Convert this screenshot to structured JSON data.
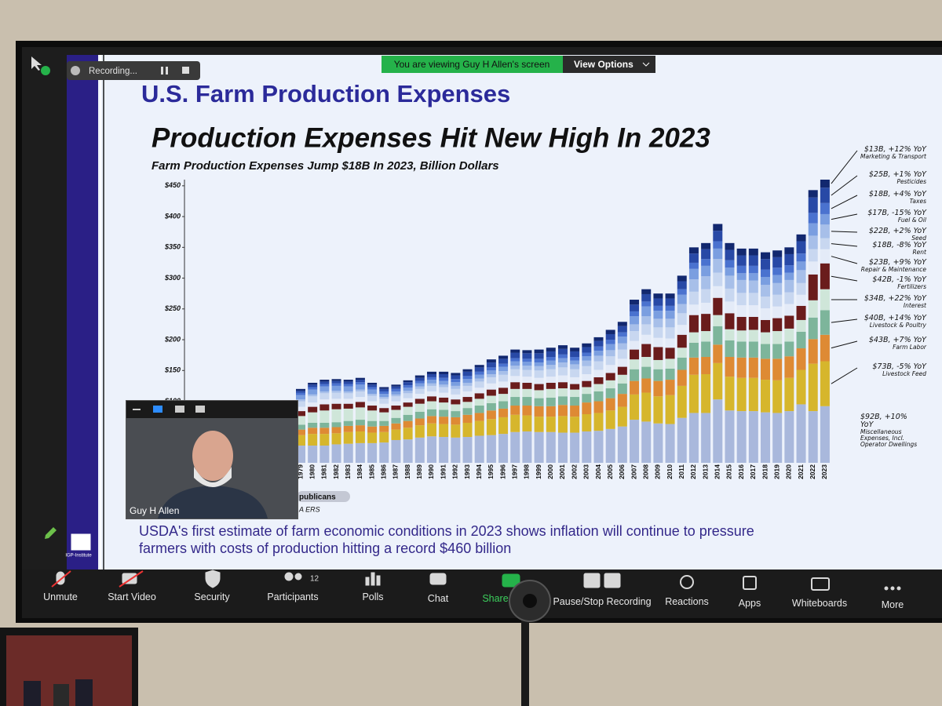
{
  "zoom": {
    "recording": "Recording...",
    "banner": "You are viewing Guy H Allen's screen",
    "view_options": "View Options",
    "participant_name": "Guy H Allen",
    "participants_count": 12,
    "toolbar": [
      "Unmute",
      "Start Video",
      "Security",
      "Participants",
      "Polls",
      "Chat",
      "Share",
      "Pause/Stop Recording",
      "Reactions",
      "Apps",
      "Whiteboards",
      "More"
    ]
  },
  "slide": {
    "header": "U.S. Farm Production Expenses",
    "logo": "IGP-Institute",
    "fragments": [
      "publicans",
      "A ERS"
    ],
    "footnote": [
      "USDA's first estimate of farm economic conditions in 2023 shows inflation will continue to pressure",
      "farmers with costs of production hitting a record $460 billion"
    ]
  },
  "chart_data": {
    "type": "stacked-bar",
    "title": "Production Expenses Hit New High In 2023",
    "subtitle": "Farm Production Expenses Jump $18B In 2023, Billion Dollars",
    "categories": [
      "1979",
      "1980",
      "1981",
      "1982",
      "1983",
      "1984",
      "1985",
      "1986",
      "1987",
      "1988",
      "1989",
      "1990",
      "1991",
      "1992",
      "1993",
      "1994",
      "1995",
      "1996",
      "1997",
      "1998",
      "1999",
      "2000",
      "2001",
      "2002",
      "2003",
      "2004",
      "2005",
      "2006",
      "2007",
      "2008",
      "2009",
      "2010",
      "2011",
      "2012",
      "2013",
      "2014",
      "2015",
      "2016",
      "2017",
      "2018",
      "2019",
      "2020",
      "2021",
      "2022",
      "2023"
    ],
    "ylim": [
      0,
      460
    ],
    "yticks": [
      {
        "value": 100,
        "label": "$100"
      },
      {
        "value": 150,
        "label": "$150"
      },
      {
        "value": 200,
        "label": "$200"
      },
      {
        "value": 250,
        "label": "$250"
      },
      {
        "value": 300,
        "label": "$300"
      },
      {
        "value": 350,
        "label": "$350"
      },
      {
        "value": 400,
        "label": "$400"
      },
      {
        "value": 450,
        "label": "$450"
      }
    ],
    "grid": false,
    "series": [
      {
        "name": "Miscellaneous Expenses, Incl. Operator Dwellings",
        "annotation": "$92B, +10% YoY",
        "color": "#a9b8dc",
        "values": [
          28,
          28,
          28,
          30,
          31,
          32,
          32,
          33,
          37,
          38,
          41,
          43,
          42,
          41,
          42,
          44,
          45,
          47,
          50,
          51,
          50,
          50,
          49,
          49,
          51,
          52,
          55,
          59,
          70,
          67,
          64,
          63,
          73,
          81,
          81,
          103,
          85,
          84,
          84,
          82,
          81,
          84,
          95,
          84,
          92
        ]
      },
      {
        "name": "Livestock Feed",
        "annotation": "$73B, -5% YoY",
        "color": "#d6b62c",
        "values": [
          17,
          19,
          19,
          18,
          19,
          19,
          17,
          17,
          17,
          19,
          20,
          21,
          21,
          21,
          23,
          24,
          26,
          27,
          28,
          26,
          25,
          25,
          27,
          26,
          28,
          29,
          30,
          32,
          41,
          47,
          44,
          47,
          52,
          62,
          63,
          59,
          55,
          54,
          54,
          53,
          53,
          54,
          56,
          77,
          73
        ]
      },
      {
        "name": "Farm Labor",
        "annotation": "$43B, +7% YoY",
        "color": "#de8a34",
        "values": [
          9,
          10,
          10,
          10,
          10,
          10,
          10,
          10,
          10,
          11,
          11,
          12,
          12,
          12,
          13,
          13,
          14,
          14,
          15,
          16,
          17,
          17,
          18,
          18,
          19,
          19,
          20,
          21,
          22,
          23,
          25,
          25,
          26,
          28,
          28,
          30,
          32,
          33,
          33,
          34,
          35,
          35,
          35,
          40,
          43
        ]
      },
      {
        "name": "Livestock & Poultry",
        "annotation": "$40B, +14% YoY",
        "color": "#7db59b",
        "values": [
          8,
          8,
          8,
          8,
          8,
          9,
          9,
          8,
          9,
          10,
          11,
          11,
          11,
          10,
          11,
          12,
          12,
          12,
          14,
          14,
          13,
          14,
          14,
          14,
          14,
          16,
          16,
          17,
          19,
          19,
          19,
          18,
          20,
          24,
          25,
          30,
          27,
          26,
          26,
          24,
          24,
          24,
          27,
          35,
          40
        ]
      },
      {
        "name": "Interest",
        "annotation": "$34B, +22% YoY",
        "color": "#cfe6d9",
        "values": [
          14,
          17,
          20,
          21,
          20,
          20,
          17,
          14,
          13,
          13,
          13,
          13,
          12,
          11,
          10,
          11,
          12,
          12,
          13,
          13,
          13,
          14,
          13,
          12,
          11,
          12,
          13,
          14,
          16,
          16,
          15,
          16,
          16,
          17,
          17,
          18,
          18,
          18,
          19,
          19,
          21,
          21,
          19,
          28,
          34
        ]
      },
      {
        "name": "Fertilizers",
        "annotation": "$42B, -1% YoY",
        "color": "#6a1c1c",
        "values": [
          8,
          9,
          10,
          9,
          8,
          9,
          8,
          7,
          7,
          7,
          8,
          8,
          8,
          8,
          8,
          9,
          10,
          10,
          11,
          10,
          10,
          10,
          10,
          9,
          10,
          11,
          12,
          13,
          16,
          21,
          21,
          18,
          21,
          28,
          28,
          28,
          26,
          22,
          21,
          20,
          21,
          21,
          23,
          42,
          42
        ]
      },
      {
        "name": "Repair & Maintenance",
        "annotation": "$23B, +9% YoY",
        "color": "#e4ebf8",
        "values": [
          7,
          7,
          8,
          8,
          8,
          8,
          7,
          7,
          7,
          7,
          8,
          8,
          8,
          8,
          9,
          9,
          10,
          10,
          10,
          10,
          10,
          10,
          11,
          11,
          11,
          12,
          13,
          13,
          14,
          15,
          15,
          15,
          16,
          17,
          18,
          19,
          19,
          19,
          19,
          19,
          19,
          19,
          18,
          21,
          23
        ]
      },
      {
        "name": "Rent",
        "annotation": "$18B, -8% YoY",
        "color": "#c8d7f0",
        "values": [
          9,
          10,
          10,
          10,
          9,
          9,
          9,
          8,
          8,
          8,
          8,
          9,
          9,
          9,
          9,
          10,
          10,
          11,
          11,
          11,
          12,
          12,
          13,
          13,
          13,
          14,
          14,
          15,
          16,
          17,
          17,
          18,
          19,
          21,
          22,
          22,
          21,
          20,
          20,
          19,
          19,
          19,
          19,
          20,
          18
        ]
      },
      {
        "name": "Seed",
        "annotation": "$22B, +2% YoY",
        "color": "#a7bfe9",
        "values": [
          3,
          3,
          3,
          3,
          3,
          3,
          3,
          3,
          3,
          4,
          4,
          4,
          4,
          5,
          5,
          5,
          5,
          6,
          6,
          7,
          7,
          7,
          8,
          8,
          9,
          9,
          10,
          10,
          11,
          13,
          14,
          14,
          15,
          20,
          21,
          22,
          21,
          21,
          20,
          19,
          19,
          20,
          21,
          22,
          22
        ]
      },
      {
        "name": "Fuel & Oil",
        "annotation": "$17B, -15% YoY",
        "color": "#7a9ee0",
        "values": [
          7,
          8,
          8,
          8,
          8,
          8,
          7,
          5,
          5,
          5,
          5,
          6,
          6,
          6,
          6,
          6,
          6,
          7,
          7,
          6,
          6,
          7,
          7,
          6,
          7,
          8,
          10,
          11,
          13,
          16,
          13,
          13,
          15,
          17,
          17,
          17,
          13,
          11,
          12,
          13,
          13,
          12,
          14,
          20,
          17
        ]
      },
      {
        "name": "Taxes",
        "annotation": "$18B, +4% YoY",
        "color": "#4a72cf",
        "values": [
          4,
          4,
          4,
          4,
          4,
          4,
          4,
          4,
          4,
          4,
          4,
          4,
          5,
          5,
          5,
          5,
          5,
          5,
          5,
          5,
          6,
          6,
          6,
          6,
          6,
          7,
          7,
          7,
          8,
          8,
          8,
          8,
          9,
          10,
          11,
          12,
          12,
          12,
          12,
          12,
          12,
          12,
          13,
          17,
          18
        ]
      },
      {
        "name": "Pesticides",
        "annotation": "$25B, +1% YoY",
        "color": "#2849a6",
        "values": [
          3,
          4,
          4,
          4,
          4,
          4,
          4,
          4,
          4,
          5,
          5,
          5,
          6,
          6,
          7,
          7,
          8,
          8,
          9,
          9,
          9,
          9,
          9,
          9,
          9,
          9,
          9,
          10,
          11,
          12,
          12,
          12,
          13,
          15,
          16,
          17,
          17,
          17,
          17,
          17,
          17,
          18,
          20,
          25,
          25
        ]
      },
      {
        "name": "Marketing & Transport",
        "annotation": "$13B, +12% YoY",
        "color": "#12286f",
        "values": [
          3,
          3,
          3,
          3,
          3,
          3,
          3,
          3,
          3,
          3,
          4,
          4,
          4,
          4,
          4,
          4,
          5,
          5,
          5,
          5,
          6,
          6,
          6,
          6,
          6,
          6,
          7,
          7,
          8,
          8,
          8,
          8,
          9,
          10,
          10,
          11,
          11,
          11,
          11,
          11,
          11,
          11,
          11,
          12,
          13
        ]
      }
    ]
  }
}
